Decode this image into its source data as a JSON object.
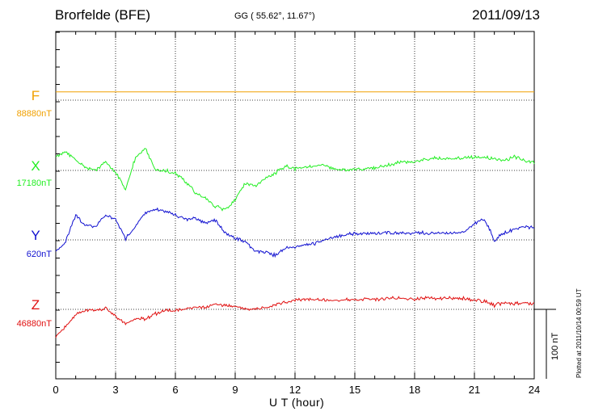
{
  "header": {
    "station": "Brorfelde (BFE)",
    "coords": "GG ( 55.62°,  11.67°)",
    "date": "2011/09/13"
  },
  "footer": {
    "xlabel": "U T (hour)",
    "plotted": "Plotted at 2011/10/14 00:59 UT",
    "scale_label": "100 nT"
  },
  "colors": {
    "F": "#f0a000",
    "X": "#22ee22",
    "Y": "#1010d0",
    "Z": "#e01010"
  },
  "chart_data": {
    "type": "line",
    "title": "Brorfelde (BFE)",
    "xlabel": "U T (hour)",
    "ylabel": "",
    "xlim": [
      0,
      24
    ],
    "x_ticks": [
      "0",
      "3",
      "6",
      "9",
      "12",
      "15",
      "18",
      "21",
      "24"
    ],
    "grid": true,
    "scale_bar_nT": 100,
    "x": [
      0,
      0.5,
      1,
      1.5,
      2,
      2.5,
      3,
      3.5,
      4,
      4.5,
      5,
      5.5,
      6,
      6.5,
      7,
      7.5,
      8,
      8.5,
      9,
      9.5,
      10,
      10.5,
      11,
      11.5,
      12,
      12.5,
      13,
      13.5,
      14,
      14.5,
      15,
      15.5,
      16,
      16.5,
      17,
      17.5,
      18,
      18.5,
      19,
      19.5,
      20,
      20.5,
      21,
      21.5,
      22,
      22.5,
      23,
      23.5,
      24
    ],
    "series": [
      {
        "name": "F",
        "baseline_label": "88880nT",
        "offset_nT": [
          12,
          12,
          12,
          12,
          12,
          12,
          12,
          12,
          12,
          12,
          12,
          12,
          12,
          12,
          12,
          12,
          12,
          12,
          12,
          12,
          12,
          12,
          12,
          12,
          12,
          12,
          12,
          12,
          12,
          12,
          12,
          12,
          12,
          12,
          12,
          12,
          12,
          12,
          12,
          12,
          12,
          12,
          12,
          12,
          12,
          12,
          12,
          12,
          12
        ]
      },
      {
        "name": "X",
        "baseline_label": "17180nT",
        "offset_nT": [
          20,
          26,
          15,
          4,
          1,
          12,
          -2,
          -27,
          19,
          32,
          1,
          0,
          -4,
          -16,
          -32,
          -40,
          -52,
          -56,
          -42,
          -18,
          -22,
          -12,
          -4,
          6,
          2,
          4,
          6,
          8,
          2,
          0,
          2,
          2,
          4,
          6,
          10,
          13,
          12,
          15,
          18,
          17,
          17,
          18,
          20,
          18,
          17,
          14,
          20,
          14,
          12
        ]
      },
      {
        "name": "Y",
        "baseline_label": "620nT",
        "offset_nT": [
          -18,
          -2,
          36,
          21,
          19,
          36,
          30,
          2,
          20,
          39,
          44,
          41,
          36,
          30,
          31,
          24,
          28,
          10,
          3,
          -2,
          -16,
          -18,
          -22,
          -12,
          -10,
          -7,
          -5,
          0,
          4,
          7,
          9,
          9,
          9,
          10,
          10,
          10,
          10,
          10,
          10,
          10,
          10,
          10,
          24,
          30,
          0,
          10,
          15,
          19,
          18
        ]
      },
      {
        "name": "Z",
        "baseline_label": "46880nT",
        "offset_nT": [
          -40,
          -24,
          -8,
          0,
          -2,
          2,
          -10,
          -20,
          -13,
          -14,
          -6,
          -2,
          -2,
          1,
          2,
          3,
          7,
          6,
          4,
          1,
          1,
          2,
          6,
          10,
          14,
          14,
          14,
          13,
          13,
          14,
          14,
          15,
          14,
          15,
          16,
          16,
          15,
          16,
          15,
          16,
          16,
          16,
          12,
          12,
          6,
          10,
          8,
          9,
          9
        ]
      }
    ]
  }
}
